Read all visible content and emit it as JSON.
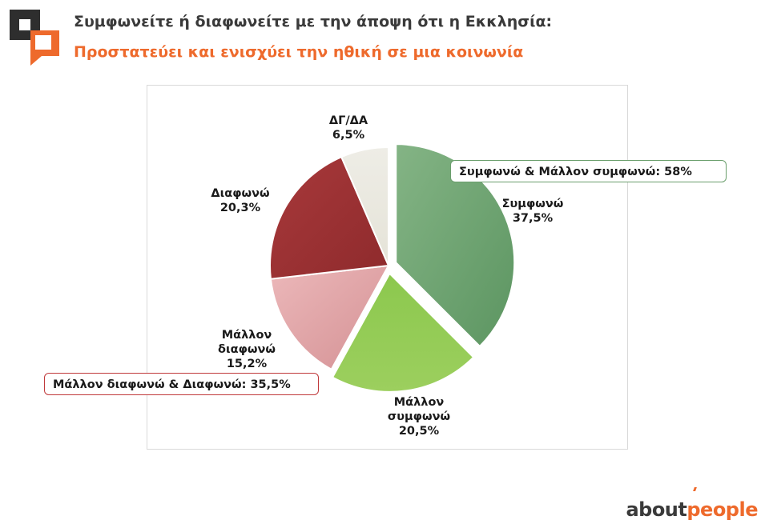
{
  "header": {
    "title": "Συμφωνείτε ή διαφωνείτε με την άποψη ότι η Εκκλησία:",
    "subtitle": "Προστατεύει και ενισχύει την ηθική σε μια κοινωνία"
  },
  "chart_data": {
    "type": "pie",
    "title": "",
    "slices": [
      {
        "label": "Συμφωνώ",
        "value": 37.5,
        "value_text": "37,5%",
        "color": "#6ea572",
        "exploded": true
      },
      {
        "label": "Μάλλον συμφωνώ",
        "value": 20.5,
        "value_text": "20,5%",
        "color": "#92c955",
        "exploded": true
      },
      {
        "label": "Μάλλον διαφωνώ",
        "value": 15.2,
        "value_text": "15,2%",
        "color": "#e0a3a6",
        "exploded": false
      },
      {
        "label": "Διαφωνώ",
        "value": 20.3,
        "value_text": "20,3%",
        "color": "#9b2f31",
        "exploded": false
      },
      {
        "label": "ΔΓ/ΔΑ",
        "value": 6.5,
        "value_text": "6,5%",
        "color": "#ecebe2",
        "exploded": false
      }
    ],
    "annotations": [
      {
        "text": "Συμφωνώ & Μάλλον συμφωνώ: 58%",
        "border_color": "#6a9e6c"
      },
      {
        "text": "Μάλλον διαφωνώ & Διαφωνώ: 35,5%",
        "border_color": "#c0393b"
      }
    ]
  },
  "labels": {
    "symfono_l1": "Συμφωνώ",
    "mallon_symf_l1": "Μάλλον",
    "mallon_symf_l2": "συμφωνώ",
    "mallon_diaf_l1": "Μάλλον",
    "mallon_diaf_l2": "διαφωνώ",
    "diafono_l1": "Διαφωνώ",
    "dgda_l1": "ΔΓ/ΔΑ"
  },
  "brand": {
    "part1": "about",
    "part2": "people",
    "color_dark": "#3a3a3a",
    "color_accent": "#ee6a2c"
  }
}
